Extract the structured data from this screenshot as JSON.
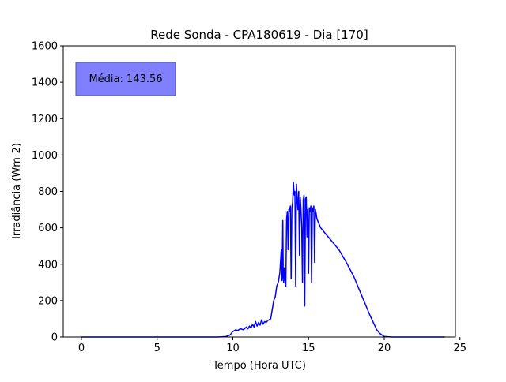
{
  "chart_data": {
    "type": "line",
    "title": "Rede Sonda - CPA180619 - Dia [170]",
    "xlabel": "Tempo (Hora UTC)",
    "ylabel": "Irradiância (Wm-2)",
    "xlim": [
      -1.2,
      24.7
    ],
    "ylim": [
      0,
      1600
    ],
    "xticks": [
      0,
      5,
      10,
      15,
      20,
      25
    ],
    "yticks": [
      0,
      200,
      400,
      600,
      800,
      1000,
      1200,
      1400,
      1600
    ],
    "grid": false,
    "annotation": {
      "text": "Média: 143.56",
      "placement": "top-left"
    },
    "series": [
      {
        "color": "#0000ff",
        "x": [
          0,
          9.0,
          9.5,
          9.8,
          10.0,
          10.2,
          10.3,
          10.5,
          10.7,
          10.9,
          11.0,
          11.1,
          11.2,
          11.3,
          11.4,
          11.5,
          11.6,
          11.7,
          11.8,
          11.9,
          12.0,
          12.1,
          12.2,
          12.3,
          12.4,
          12.5,
          12.6,
          12.7,
          12.8,
          12.9,
          13.0,
          13.1,
          13.2,
          13.25,
          13.3,
          13.33,
          13.36,
          13.4,
          13.45,
          13.5,
          13.55,
          13.6,
          13.65,
          13.7,
          13.75,
          13.8,
          13.85,
          13.9,
          13.95,
          14.0,
          14.05,
          14.1,
          14.15,
          14.2,
          14.25,
          14.3,
          14.35,
          14.4,
          14.45,
          14.5,
          14.55,
          14.6,
          14.65,
          14.7,
          14.75,
          14.8,
          14.85,
          14.9,
          14.95,
          15.0,
          15.05,
          15.1,
          15.15,
          15.2,
          15.25,
          15.3,
          15.35,
          15.4,
          15.45,
          15.5,
          15.55,
          15.6,
          15.65,
          15.7,
          15.75,
          15.8,
          15.85,
          15.9,
          15.95,
          16.0,
          16.5,
          17.0,
          17.5,
          18.0,
          18.5,
          19.0,
          19.5,
          19.7,
          19.9,
          20.0,
          20.3,
          20.5,
          21.0,
          24.0
        ],
        "y": [
          0,
          0,
          2,
          10,
          30,
          40,
          35,
          45,
          40,
          55,
          45,
          60,
          50,
          70,
          55,
          85,
          60,
          80,
          65,
          95,
          70,
          85,
          80,
          90,
          95,
          100,
          150,
          200,
          220,
          280,
          300,
          350,
          480,
          310,
          640,
          330,
          300,
          380,
          310,
          280,
          650,
          690,
          480,
          700,
          690,
          720,
          320,
          710,
          740,
          850,
          780,
          800,
          280,
          840,
          760,
          700,
          800,
          450,
          770,
          700,
          600,
          300,
          750,
          780,
          170,
          760,
          770,
          550,
          700,
          350,
          710,
          690,
          720,
          300,
          710,
          690,
          720,
          410,
          700,
          680,
          650,
          640,
          630,
          620,
          610,
          600,
          595,
          590,
          585,
          580,
          530,
          480,
          410,
          330,
          230,
          130,
          40,
          20,
          8,
          3,
          1,
          0,
          0,
          0
        ]
      }
    ]
  }
}
